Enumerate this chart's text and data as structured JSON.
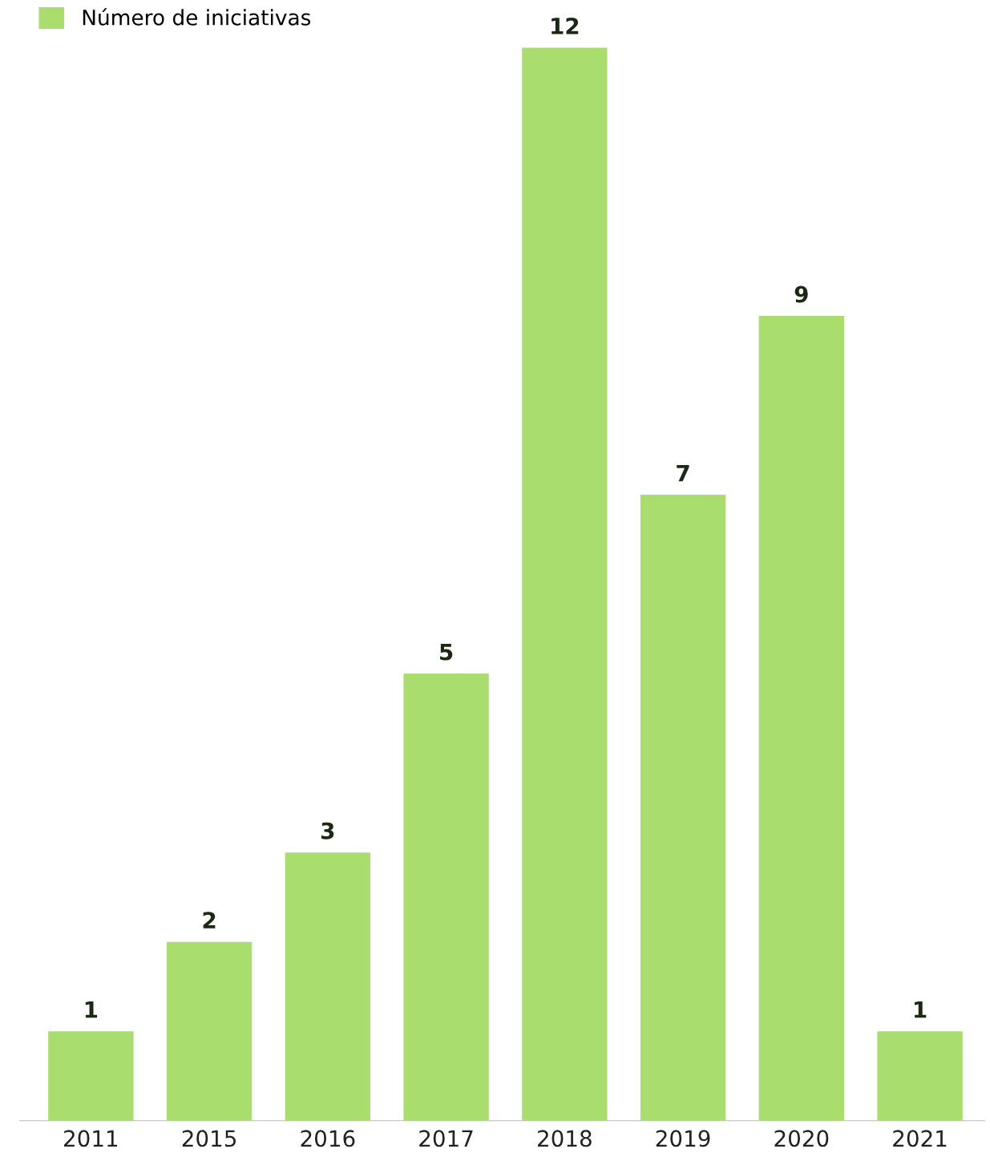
{
  "chart_data": {
    "type": "bar",
    "categories": [
      "2011",
      "2015",
      "2016",
      "2017",
      "2018",
      "2019",
      "2020",
      "2021"
    ],
    "series": [
      {
        "name": "Número de iniciativas",
        "color": "#a9dd6e",
        "values": [
          1,
          2,
          3,
          5,
          12,
          7,
          9,
          1
        ]
      }
    ],
    "data_labels": true,
    "legend": "top left",
    "grid": false
  }
}
